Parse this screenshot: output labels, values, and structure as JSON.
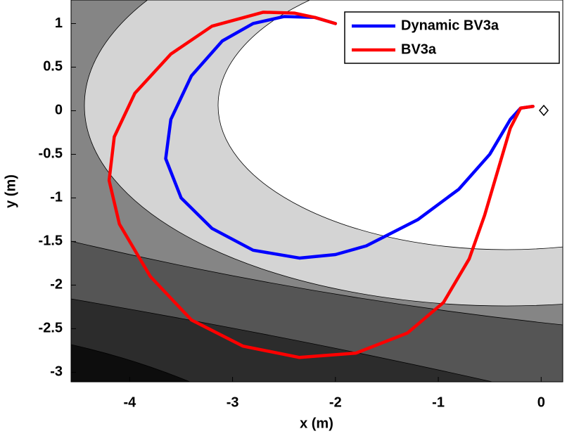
{
  "chart_data": {
    "type": "line",
    "xlabel": "x (m)",
    "ylabel": "y (m)",
    "xlim": [
      -4.57,
      0.21
    ],
    "ylim": [
      -3.11,
      1.27
    ],
    "xticks": [
      -4,
      -3,
      -2,
      -1,
      0
    ],
    "yticks": [
      1,
      0.5,
      0,
      -0.5,
      -1,
      -1.5,
      -2,
      -2.5,
      -3
    ],
    "legend": "upper right",
    "series": [
      {
        "name": "Dynamic BV3a",
        "color": "#0000ff",
        "x": [
          -0.08,
          -0.2,
          -0.3,
          -0.5,
          -0.8,
          -1.2,
          -1.7,
          -2.0,
          -2.35,
          -2.8,
          -3.2,
          -3.5,
          -3.65,
          -3.6,
          -3.4,
          -3.1,
          -2.8,
          -2.5,
          -2.2,
          -2.0
        ],
        "values": [
          0.05,
          0.03,
          -0.1,
          -0.5,
          -0.9,
          -1.25,
          -1.55,
          -1.65,
          -1.69,
          -1.6,
          -1.35,
          -1.0,
          -0.55,
          -0.1,
          0.4,
          0.8,
          1.0,
          1.08,
          1.07,
          1.0
        ]
      },
      {
        "name": "BV3a",
        "color": "#ff0000",
        "x": [
          -0.08,
          -0.2,
          -0.3,
          -0.4,
          -0.55,
          -0.7,
          -0.95,
          -1.3,
          -1.8,
          -2.35,
          -2.9,
          -3.4,
          -3.8,
          -4.1,
          -4.2,
          -4.15,
          -3.95,
          -3.6,
          -3.2,
          -2.7,
          -2.4,
          -2.2,
          -2.0
        ],
        "values": [
          0.05,
          0.03,
          -0.2,
          -0.6,
          -1.2,
          -1.7,
          -2.2,
          -2.55,
          -2.78,
          -2.83,
          -2.7,
          -2.4,
          -1.9,
          -1.3,
          -0.8,
          -0.3,
          0.2,
          0.65,
          0.97,
          1.13,
          1.12,
          1.07,
          1.0
        ]
      }
    ]
  }
}
